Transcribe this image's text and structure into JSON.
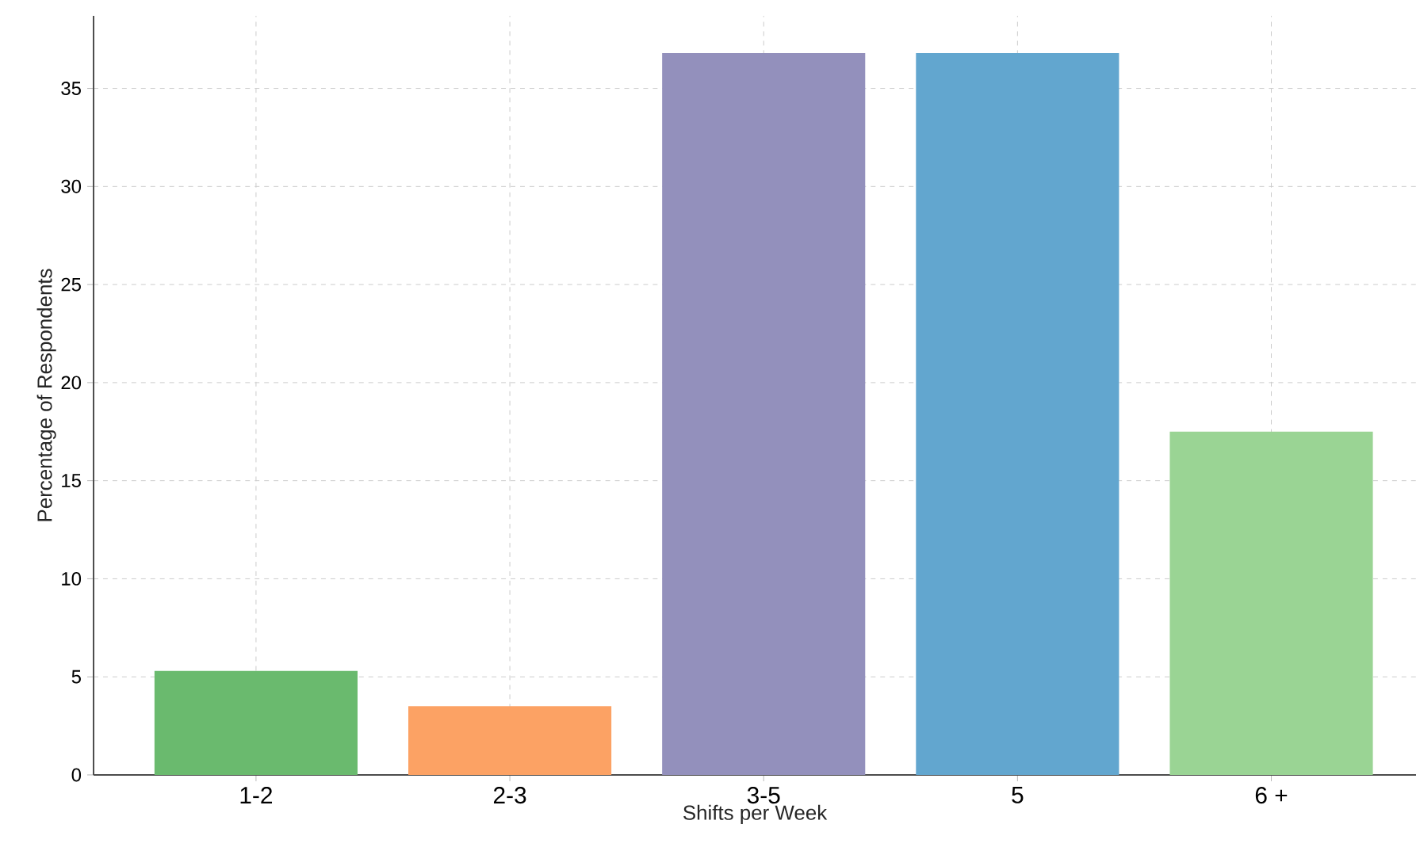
{
  "chart_data": {
    "type": "bar",
    "xlabel": "Shifts per Week",
    "ylabel": "Percentage of Respondents",
    "categories": [
      "1-2",
      "2-3",
      "3-5",
      "5",
      "6 +"
    ],
    "values": [
      5.3,
      3.5,
      36.8,
      36.8,
      17.5
    ],
    "colors": [
      "#6aba6e",
      "#fca264",
      "#9390bc",
      "#62a6cf",
      "#9ad494"
    ],
    "ylim": [
      0,
      38.7
    ],
    "yticks": [
      0,
      5,
      10,
      15,
      20,
      25,
      30,
      35
    ],
    "grid": true
  }
}
